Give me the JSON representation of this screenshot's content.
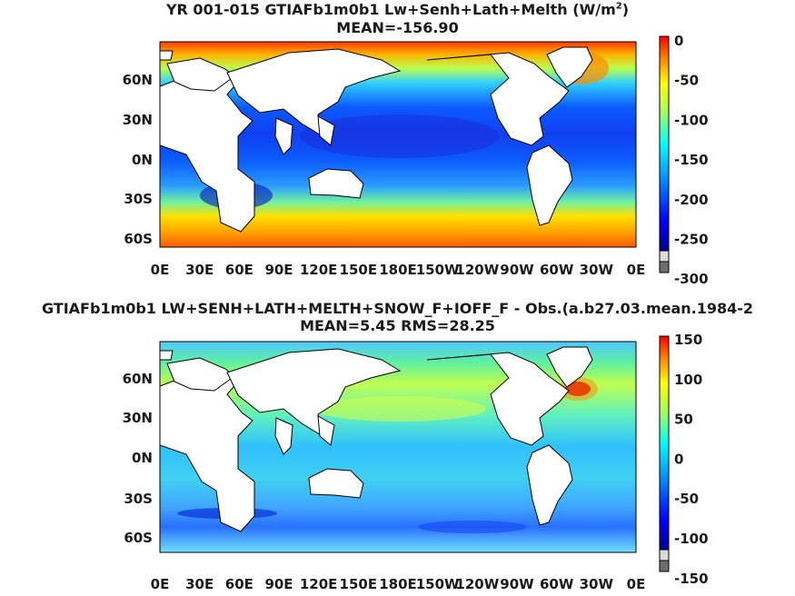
{
  "panel1": {
    "title_prefix": "YR 001-015 GTIAFb1m0b1 Lw+Senh+Lath+Melth (W/m",
    "title_sup": "2",
    "title_suffix": ")",
    "subtitle": "MEAN=-156.90",
    "colorbar": {
      "min": -300,
      "max": 0,
      "ticks": [
        "0",
        "-50",
        "-100",
        "-150",
        "-200",
        "-250",
        "-300"
      ]
    }
  },
  "panel2": {
    "title": "GTIAFb1m0b1 LW+SENH+LATH+MELTH+SNOW_F+IOFF_F - Obs.(a.b27.03.mean.1984-2",
    "subtitle": "MEAN=5.45 RMS=28.25",
    "colorbar": {
      "min": -150,
      "max": 150,
      "ticks": [
        "150",
        "100",
        "50",
        "0",
        "-50",
        "-100",
        "-150"
      ]
    }
  },
  "axes": {
    "lat_ticks": [
      "60N",
      "30N",
      "0N",
      "30S",
      "60S"
    ],
    "lon_ticks": [
      "0E",
      "30E",
      "60E",
      "90E",
      "120E",
      "150E",
      "180E",
      "150W",
      "120W",
      "90W",
      "60W",
      "30W",
      "0E"
    ]
  },
  "colors": {
    "land": "#ffffff",
    "coast": "#000000",
    "missing": "#7f7f7f"
  }
}
